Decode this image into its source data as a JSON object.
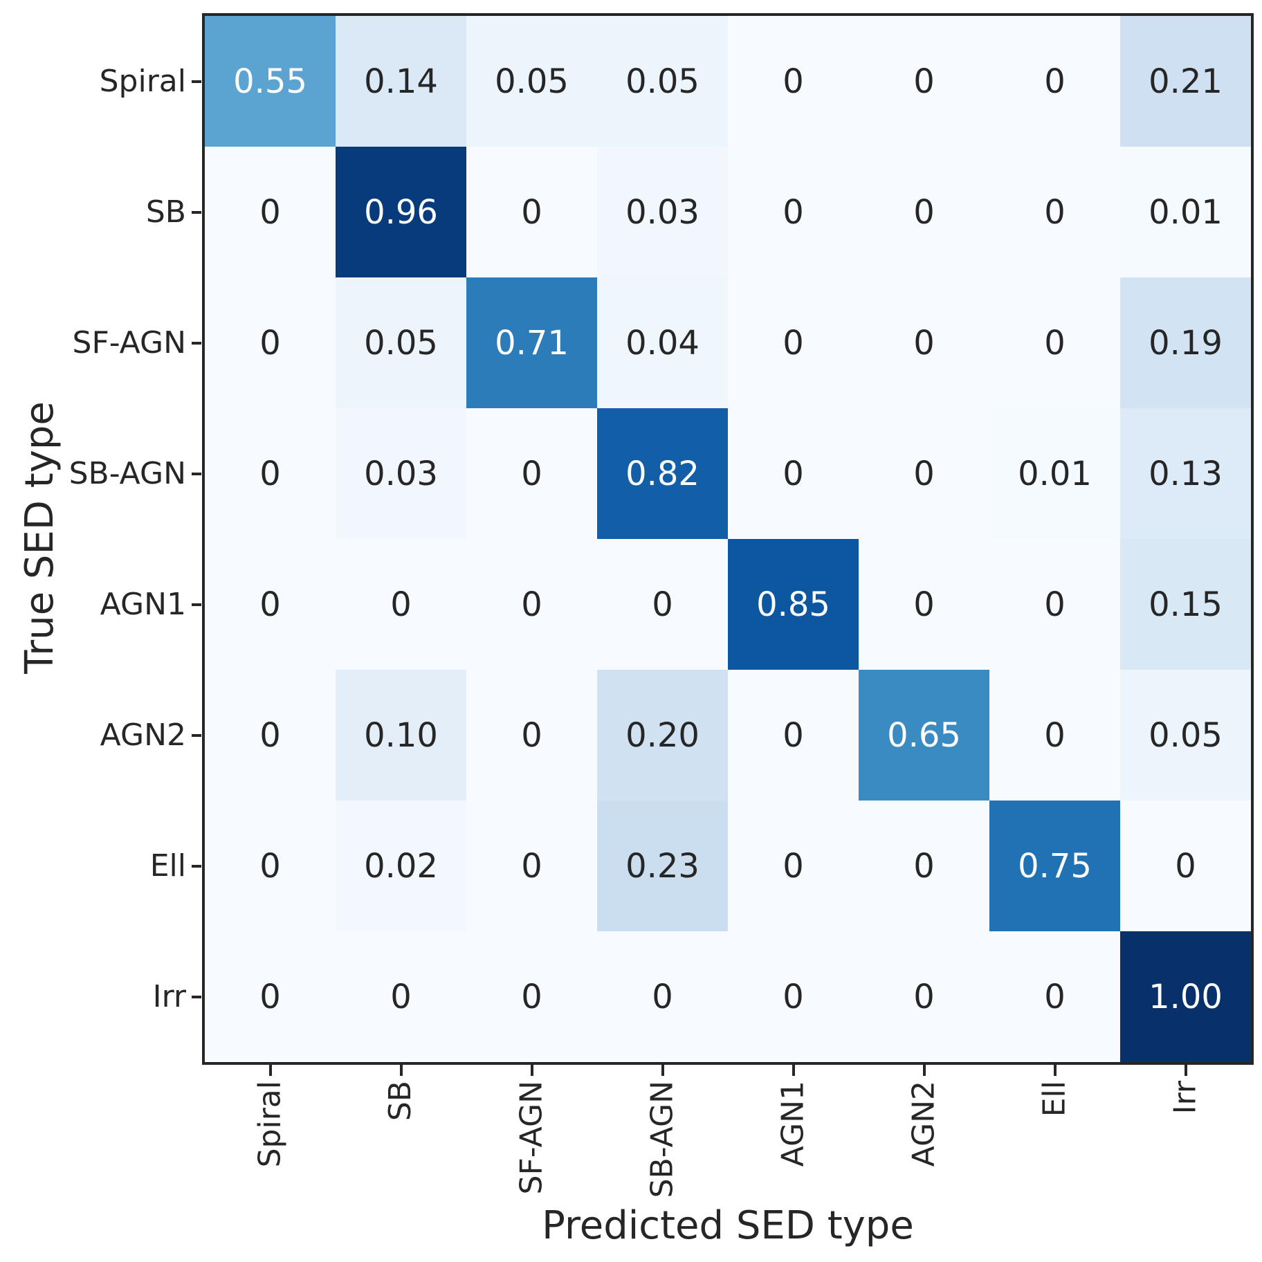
{
  "chart_data": {
    "type": "heatmap",
    "title": "",
    "xlabel": "Predicted SED type",
    "ylabel": "True SED type",
    "x_categories": [
      "Spiral",
      "SB",
      "SF-AGN",
      "SB-AGN",
      "AGN1",
      "AGN2",
      "Ell",
      "Irr"
    ],
    "y_categories": [
      "Spiral",
      "SB",
      "SF-AGN",
      "SB-AGN",
      "AGN1",
      "AGN2",
      "Ell",
      "Irr"
    ],
    "values": [
      [
        0.55,
        0.14,
        0.05,
        0.05,
        0,
        0,
        0,
        0.21
      ],
      [
        0,
        0.96,
        0,
        0.03,
        0,
        0,
        0,
        0.01
      ],
      [
        0,
        0.05,
        0.71,
        0.04,
        0,
        0,
        0,
        0.19
      ],
      [
        0,
        0.03,
        0,
        0.82,
        0,
        0,
        0.01,
        0.13
      ],
      [
        0,
        0,
        0,
        0,
        0.85,
        0,
        0,
        0.15
      ],
      [
        0,
        0.1,
        0,
        0.2,
        0,
        0.65,
        0,
        0.05
      ],
      [
        0,
        0.02,
        0,
        0.23,
        0,
        0,
        0.75,
        0
      ],
      [
        0,
        0,
        0,
        0,
        0,
        0,
        0,
        1.0
      ]
    ],
    "vmin": 0,
    "vmax": 1,
    "colormap": "Blues",
    "colormap_anchors": [
      "#f7fbff",
      "#deebf7",
      "#c6dbef",
      "#9ecae1",
      "#6baed6",
      "#4292c6",
      "#2171b5",
      "#08519c",
      "#08306b"
    ],
    "annotation_text_dark": "#262626",
    "annotation_text_light": "#ffffff",
    "spine_color": "#262626",
    "grid": false,
    "colorbar": false,
    "x_tick_rotation_deg": 90,
    "zero_format": "0",
    "value_format": "2 decimals"
  }
}
